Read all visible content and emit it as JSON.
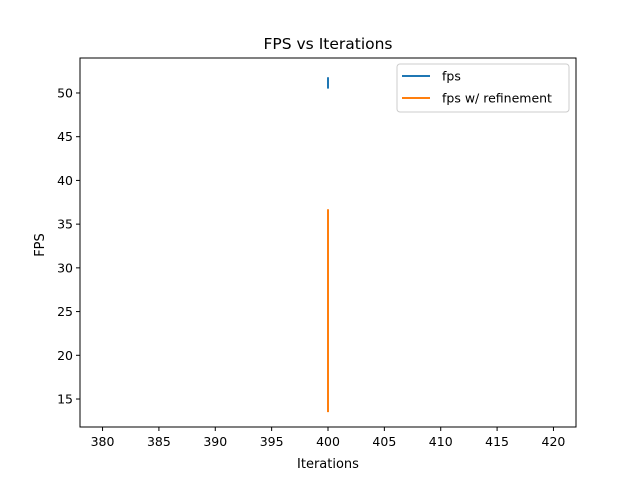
{
  "chart_data": {
    "type": "line",
    "title": "FPS vs Iterations",
    "xlabel": "Iterations",
    "ylabel": "FPS",
    "xlim": [
      378,
      422
    ],
    "ylim": [
      11.8,
      54.0
    ],
    "xticks": [
      380,
      385,
      390,
      395,
      400,
      405,
      410,
      415,
      420
    ],
    "yticks": [
      15,
      20,
      25,
      30,
      35,
      40,
      45,
      50
    ],
    "grid": false,
    "legend_position": "upper right",
    "series": [
      {
        "name": "fps",
        "color": "#1f77b4",
        "x": [
          400,
          400
        ],
        "y": [
          50.5,
          51.8
        ]
      },
      {
        "name": "fps w/ refinement",
        "color": "#ff7f0e",
        "x": [
          400,
          400
        ],
        "y": [
          13.5,
          36.7
        ]
      }
    ]
  }
}
